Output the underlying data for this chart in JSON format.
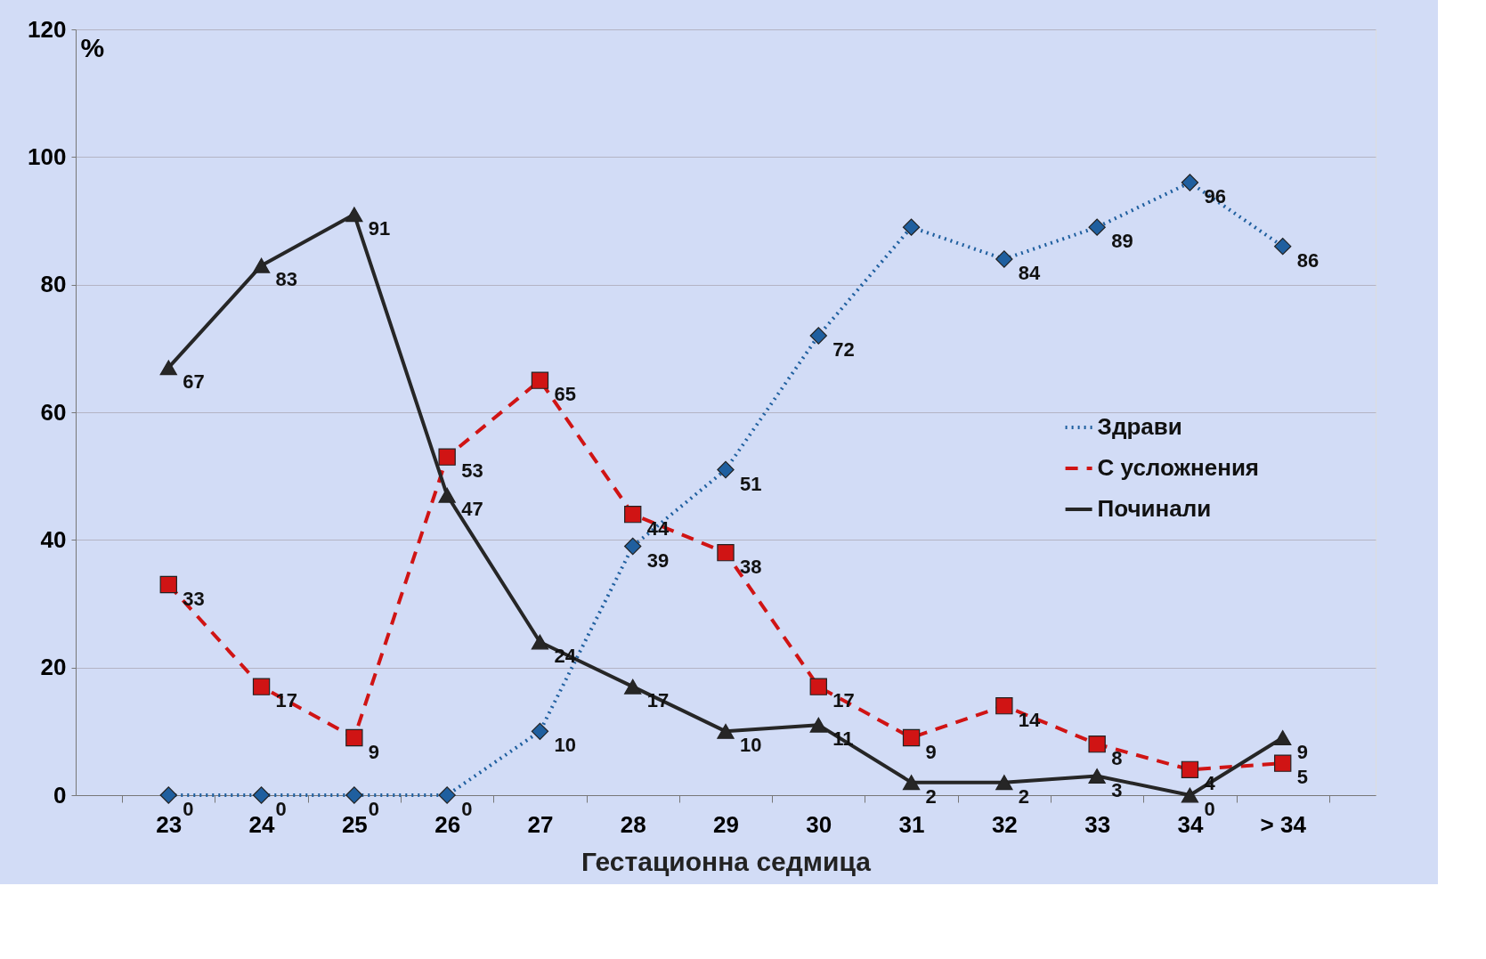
{
  "chart_data": {
    "type": "line",
    "xlabel": "Гестационна седмица",
    "ylabel": "%",
    "categories": [
      "23",
      "24",
      "25",
      "26",
      "27",
      "28",
      "29",
      "30",
      "31",
      "32",
      "33",
      "34",
      "> 34"
    ],
    "ylim": [
      0,
      120
    ],
    "yticks": [
      0,
      20,
      40,
      60,
      80,
      100,
      120
    ],
    "grid": "y",
    "legend": "right",
    "series": [
      {
        "name": "Здрави",
        "color": "#1f5f9f",
        "marker": "diamond",
        "line_style": "dotted",
        "values": [
          0,
          0,
          0,
          0,
          10,
          39,
          51,
          72,
          89,
          84,
          89,
          96,
          86
        ],
        "value_labels": [
          "0",
          "0",
          "0",
          "0",
          "10",
          "39",
          "51",
          "72",
          null,
          "84",
          "89",
          "96",
          "86"
        ]
      },
      {
        "name": "С усложнения",
        "color": "#d01414",
        "marker": "square",
        "line_style": "dashed",
        "values": [
          33,
          17,
          9,
          53,
          65,
          44,
          38,
          17,
          9,
          14,
          8,
          4,
          5
        ],
        "value_labels": [
          "33",
          "17",
          "9",
          "53",
          "65",
          "44",
          "38",
          "17",
          "9",
          "14",
          "8",
          "4",
          "5"
        ]
      },
      {
        "name": "Починали",
        "color": "#262626",
        "marker": "triangle",
        "line_style": "solid",
        "values": [
          67,
          83,
          91,
          47,
          24,
          17,
          10,
          11,
          2,
          2,
          3,
          0,
          9
        ],
        "value_labels": [
          "67",
          "83",
          "91",
          "47",
          "24",
          "17",
          "10",
          "11",
          "2",
          "2",
          "3",
          "0",
          "9"
        ]
      }
    ]
  }
}
